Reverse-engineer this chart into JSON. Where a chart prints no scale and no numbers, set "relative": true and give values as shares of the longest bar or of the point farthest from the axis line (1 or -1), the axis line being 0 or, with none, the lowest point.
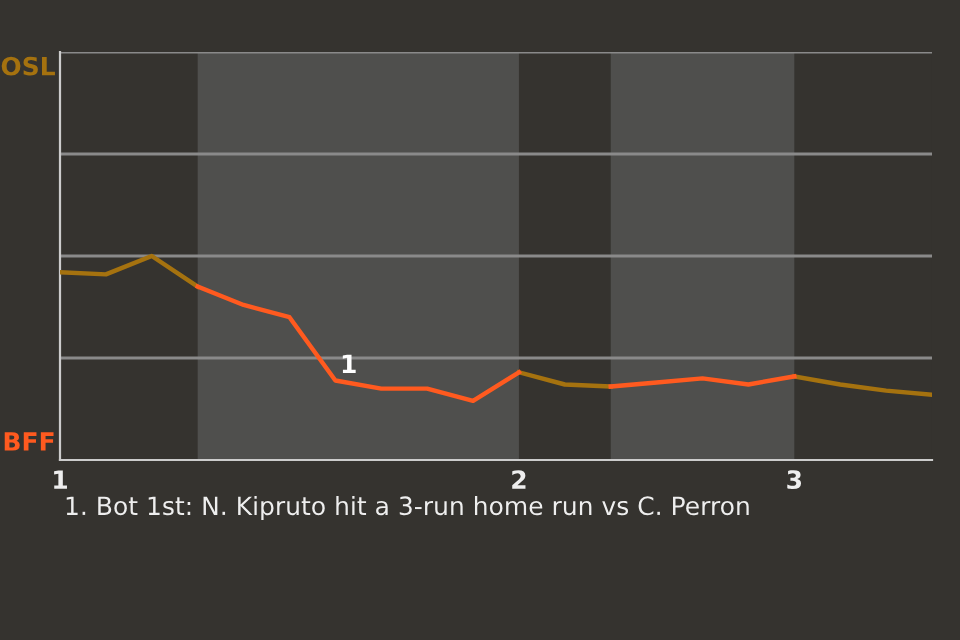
{
  "chart_data": {
    "type": "line",
    "relative": true,
    "categories": [
      "1",
      null,
      null,
      null,
      null,
      null,
      null,
      null,
      null,
      null,
      "2",
      null,
      null,
      null,
      null,
      null,
      "3",
      null,
      null,
      null
    ],
    "series": [
      {
        "color": "#a5720f",
        "values": [
          0.92,
          0.91,
          1,
          0.85,
          null,
          null,
          null,
          null,
          null,
          null,
          0.43,
          0.37,
          0.36,
          null,
          null,
          null,
          0.41,
          0.37,
          0.34,
          0.32
        ]
      },
      {
        "color": "#ff5a1f",
        "values": [
          null,
          null,
          null,
          0.85,
          0.76,
          0.7,
          0.39,
          0.35,
          0.35,
          0.29,
          0.43,
          null,
          0.36,
          0.38,
          0.4,
          0.37,
          0.41,
          null,
          null,
          null
        ]
      }
    ],
    "marker": "none",
    "line_style": "solid",
    "ref_lines": [
      {
        "axis": "y",
        "value": 0.5,
        "color": "#8a8a8a"
      },
      {
        "axis": "y",
        "value": 1,
        "color": "#8a8a8a"
      },
      {
        "axis": "y",
        "value": 1.5,
        "color": "#8a8a8a"
      },
      {
        "axis": "y",
        "value": 2,
        "color": "#8a8a8a"
      }
    ],
    "annotations": [
      "1",
      "OSL",
      "BFF",
      "1. Bot 1st: N. Kipruto hit a 3-run home run vs C. Perron"
    ]
  }
}
